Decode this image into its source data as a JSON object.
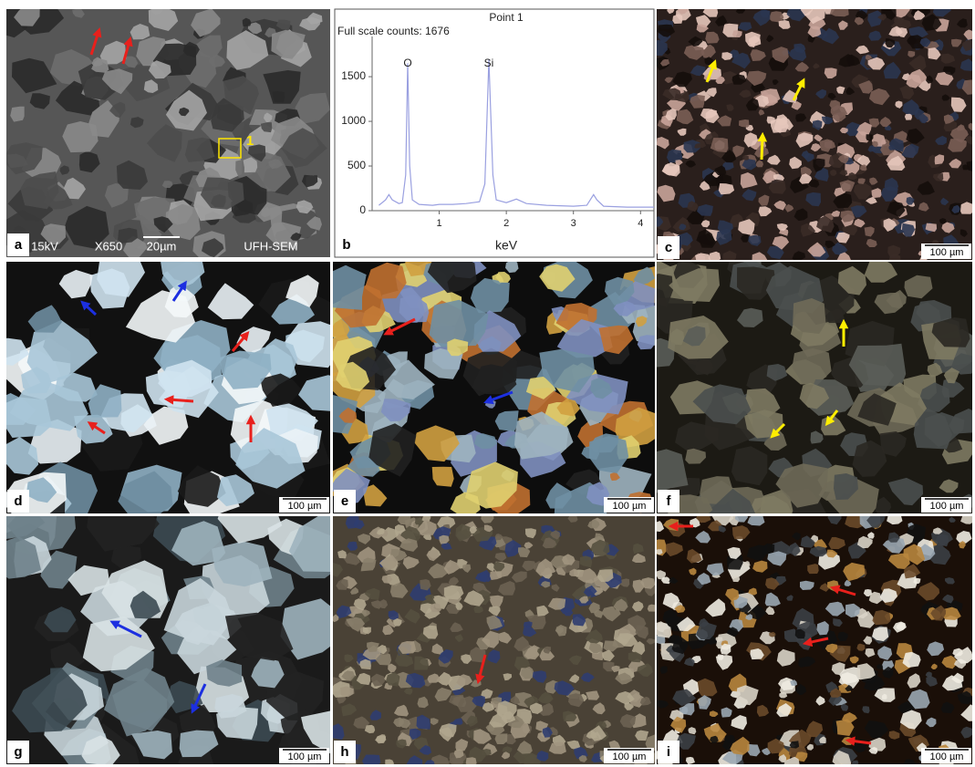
{
  "panels": [
    {
      "label": "a",
      "info": [
        "15kV",
        "X650",
        "20µm",
        "UFH-SEM"
      ],
      "marker": "1"
    },
    {
      "label": "b"
    },
    {
      "label": "c",
      "scale": "100 µm"
    },
    {
      "label": "d",
      "scale": "100 µm"
    },
    {
      "label": "e",
      "scale": "100 µm"
    },
    {
      "label": "f",
      "scale": "100 µm"
    },
    {
      "label": "g",
      "scale": "100 µm"
    },
    {
      "label": "h",
      "scale": "100 µm"
    },
    {
      "label": "i",
      "scale": "100 µm"
    }
  ],
  "chart_data": {
    "type": "line",
    "title": "Point 1",
    "subtitle": "Full scale counts: 1676",
    "x_label": "keV",
    "xlim": [
      0,
      4.2
    ],
    "xticks": [
      1,
      2,
      3,
      4
    ],
    "ylim": [
      0,
      1950
    ],
    "yticks": [
      0,
      500,
      1000,
      1500
    ],
    "annotations": [
      {
        "text": "O",
        "x": 0.53
      },
      {
        "text": "Si",
        "x": 1.74
      }
    ],
    "series": [
      {
        "color": "#9aa0e0",
        "x": [
          0.1,
          0.2,
          0.25,
          0.3,
          0.4,
          0.45,
          0.5,
          0.53,
          0.56,
          0.6,
          0.7,
          0.9,
          1.0,
          1.2,
          1.4,
          1.6,
          1.68,
          1.74,
          1.8,
          1.85,
          2.0,
          2.15,
          2.3,
          2.6,
          3.0,
          3.2,
          3.3,
          3.35,
          3.45,
          3.8,
          4.2
        ],
        "values": [
          60,
          120,
          180,
          120,
          80,
          90,
          400,
          1650,
          500,
          120,
          70,
          60,
          70,
          70,
          80,
          100,
          300,
          1690,
          400,
          120,
          90,
          130,
          80,
          60,
          50,
          60,
          180,
          120,
          50,
          40,
          40
        ]
      }
    ]
  }
}
